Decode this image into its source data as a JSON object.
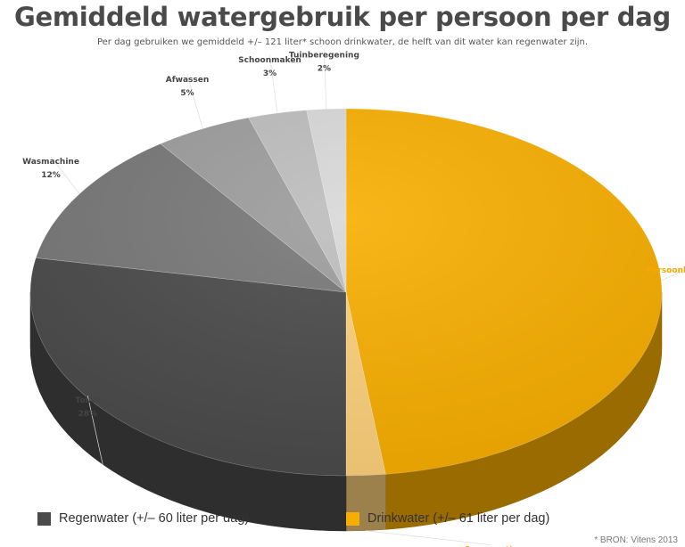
{
  "title": "Gemiddeld watergebruik per persoon per dag",
  "subtitle": "Per dag gebruiken we gemiddeld +/– 121 liter* schoon drinkwater, de helft van dit water kan regenwater zijn.",
  "chart_data": {
    "type": "pie",
    "title": "Gemiddeld watergebruik per persoon per dag",
    "slices": [
      {
        "label": "Persoonlijke  hygiëne",
        "value": 48,
        "display": "48%",
        "color": "#f8ae00",
        "group": "Drinkwater"
      },
      {
        "label": "Consumptie",
        "value": 2,
        "display": "2%",
        "color": "#fdd07a",
        "group": "Drinkwater"
      },
      {
        "label": "Toilet",
        "value": 28,
        "display": "28%",
        "color": "#4a4a4a",
        "group": "Regenwater"
      },
      {
        "label": "Wasmachine",
        "value": 12,
        "display": "12%",
        "color": "#777777",
        "group": "Regenwater"
      },
      {
        "label": "Afwassen",
        "value": 5,
        "display": "5%",
        "color": "#9c9c9c",
        "group": "Regenwater"
      },
      {
        "label": "Schoonmaken",
        "value": 3,
        "display": "3%",
        "color": "#bdbdbd",
        "group": "Regenwater"
      },
      {
        "label": "Tuinberegening",
        "value": 2,
        "display": "2%",
        "color": "#d8d8d8",
        "group": "Regenwater"
      }
    ],
    "legend": [
      {
        "label": "Regenwater (+/– 60 liter per dag)",
        "color": "#4a4a4a"
      },
      {
        "label": "Drinkwater (+/– 61 liter per dag)",
        "color": "#f8ae00"
      }
    ],
    "legend_position": "bottom"
  },
  "source": "* BRON: Vitens 2013",
  "colors": {
    "orange_label": "#f5a800",
    "gray_label": "#444444"
  }
}
